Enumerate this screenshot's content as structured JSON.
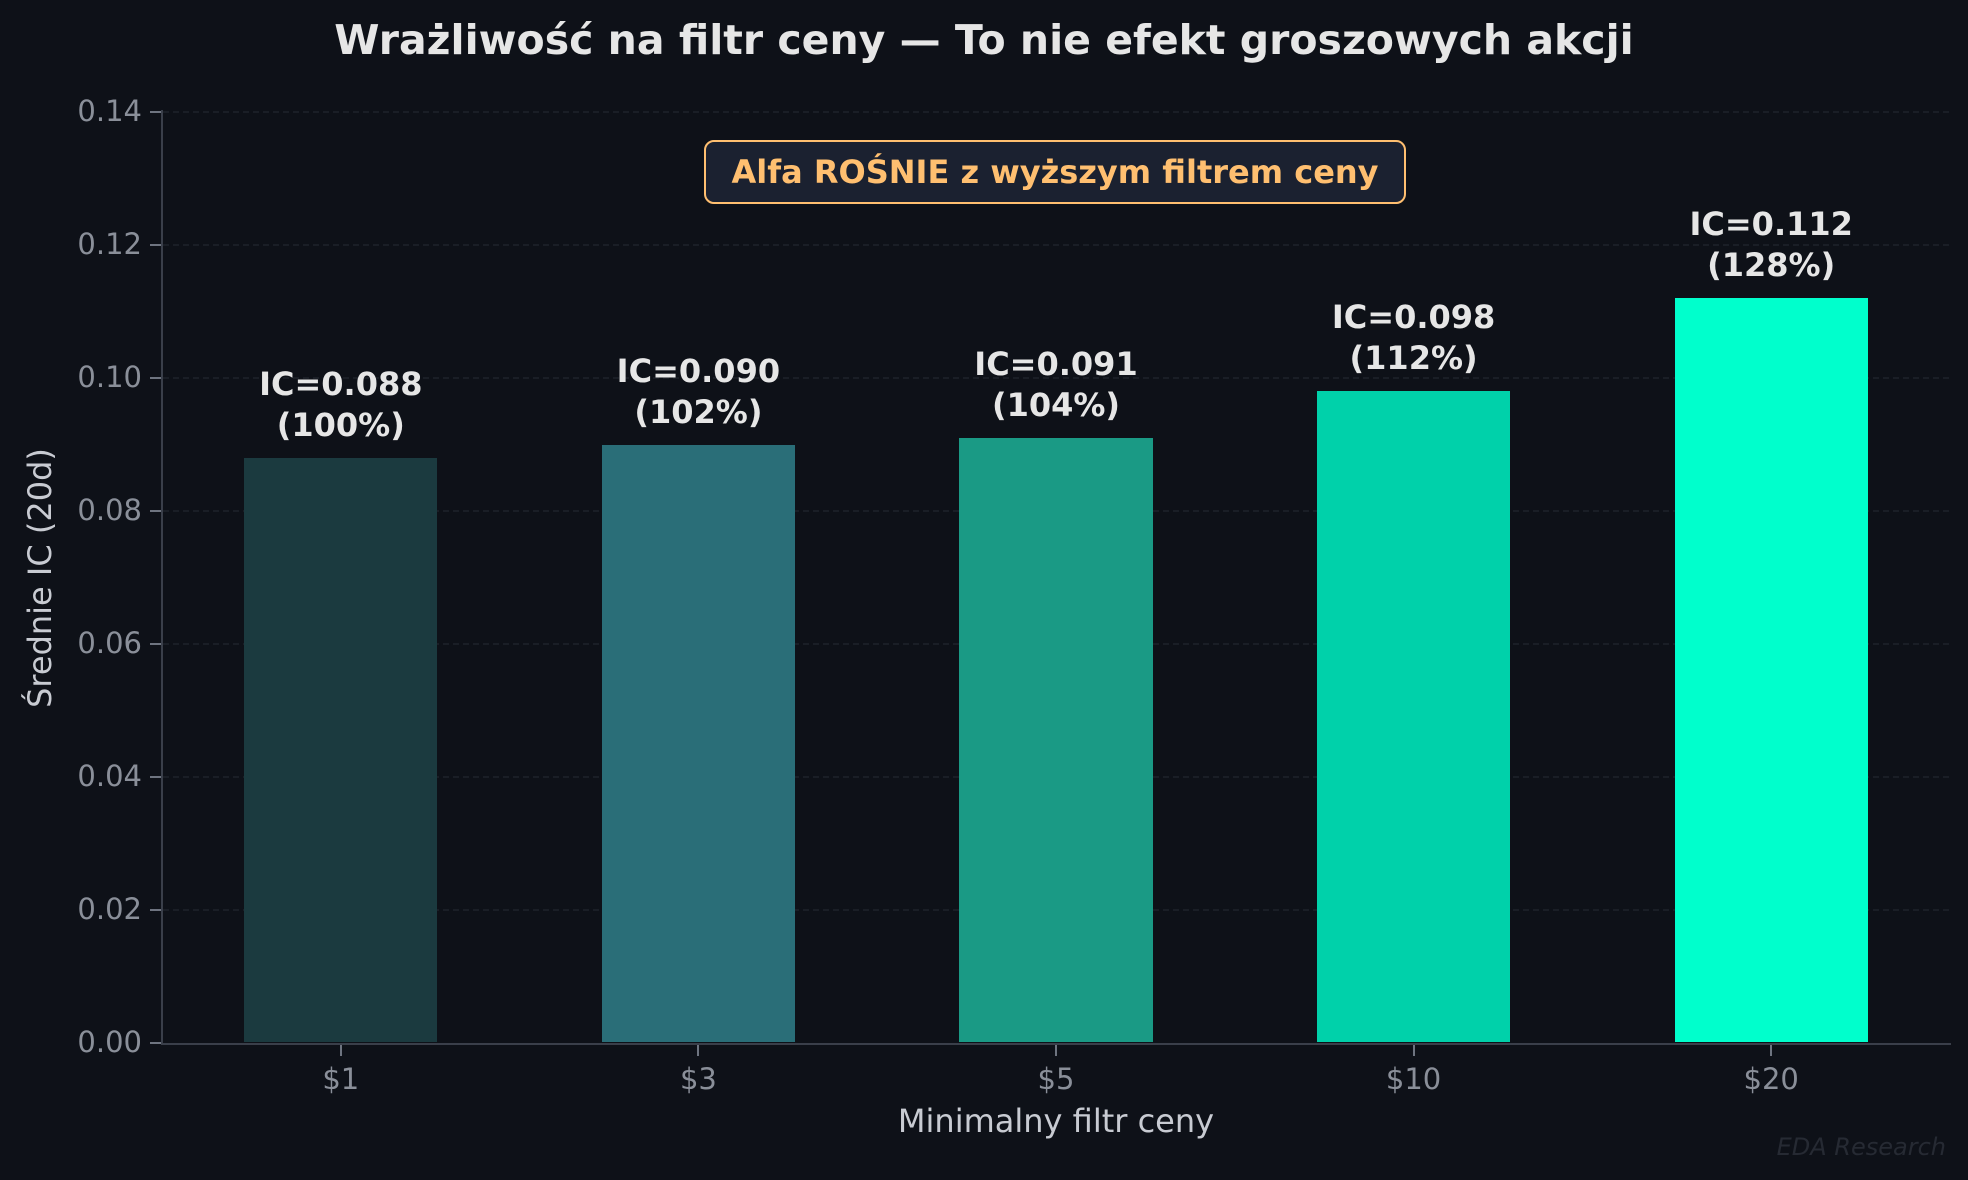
{
  "chart_data": {
    "type": "bar",
    "title": "Wrażliwość na filtr ceny — To nie efekt groszowych akcji",
    "xlabel": "Minimalny filtr ceny",
    "ylabel": "Średnie IC (20d)",
    "categories": [
      "$1",
      "$3",
      "$5",
      "$10",
      "$20"
    ],
    "values": [
      0.088,
      0.09,
      0.091,
      0.098,
      0.112
    ],
    "relative_pct": [
      100,
      102,
      104,
      112,
      128
    ],
    "bar_labels": [
      [
        "IC=0.088",
        "(100%)"
      ],
      [
        "IC=0.090",
        "(102%)"
      ],
      [
        "IC=0.091",
        "(104%)"
      ],
      [
        "IC=0.098",
        "(112%)"
      ],
      [
        "IC=0.112",
        "(128%)"
      ]
    ],
    "bar_colors": [
      "#1b3a3f",
      "#2a6e78",
      "#1a9a85",
      "#00d1aa",
      "#00ffcc"
    ],
    "ylim": [
      0,
      0.14
    ],
    "yticks": [
      "0.00",
      "0.02",
      "0.04",
      "0.06",
      "0.08",
      "0.10",
      "0.12",
      "0.14"
    ],
    "grid": true,
    "annotation": "Alfa ROŚNIE z wyższym filtrem ceny",
    "annotation_color": "#ffbf70",
    "watermark": "EDA Research",
    "background": "#0e1118"
  }
}
